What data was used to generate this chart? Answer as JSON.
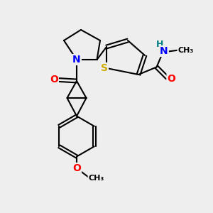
{
  "bg_color": "#eeeeee",
  "atom_colors": {
    "N": "#0000ff",
    "O": "#ff0000",
    "S": "#ccaa00",
    "H": "#008080",
    "C": "#000000"
  },
  "bond_color": "#000000",
  "figsize": [
    3.0,
    3.0
  ],
  "dpi": 100
}
